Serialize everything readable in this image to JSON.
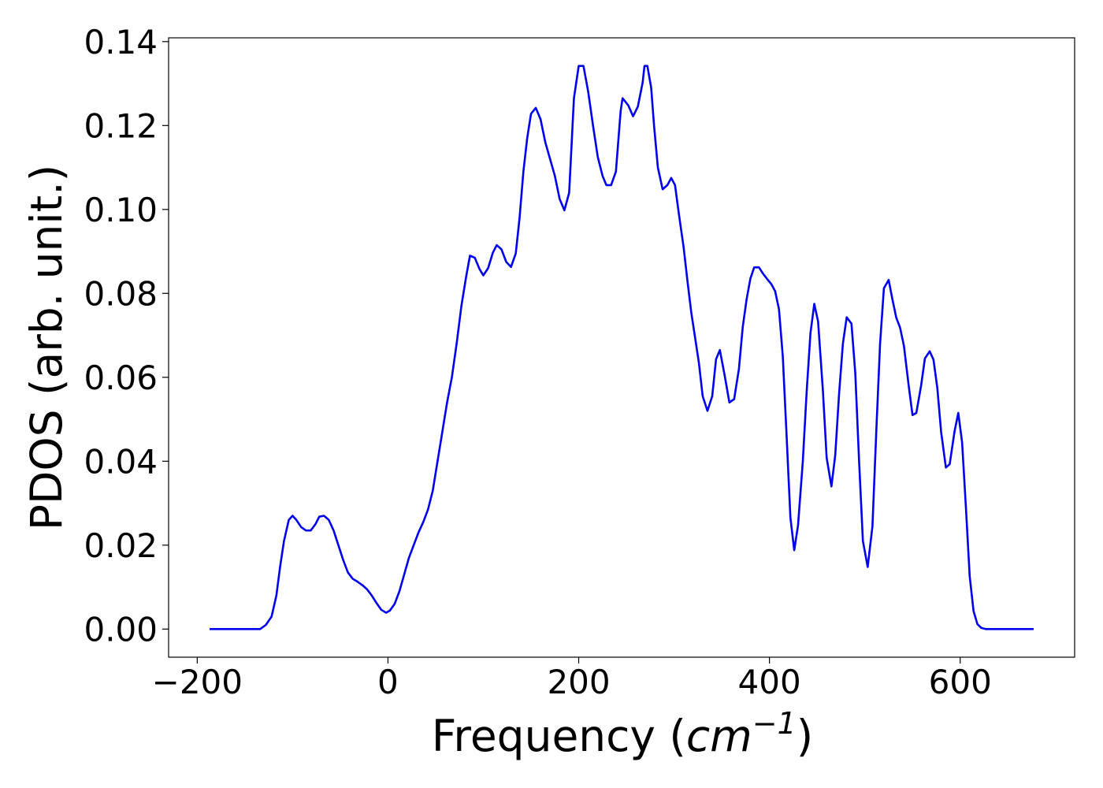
{
  "chart_data": {
    "type": "line",
    "xlabel": [
      "Frequency (",
      "cm",
      "−1",
      ")"
    ],
    "ylabel": "PDOS (arb. unit.)",
    "xlim": [
      -230,
      720
    ],
    "ylim": [
      -0.0067,
      0.1409
    ],
    "xticks": [
      {
        "value": -200,
        "label": "−200"
      },
      0,
      200,
      400,
      600
    ],
    "yticks": [
      {
        "value": 0,
        "label": "0.00"
      },
      {
        "value": 0.02,
        "label": "0.02"
      },
      {
        "value": 0.04,
        "label": "0.04"
      },
      {
        "value": 0.06,
        "label": "0.06"
      },
      {
        "value": 0.08,
        "label": "0.08"
      },
      {
        "value": 0.1,
        "label": "0.10"
      },
      {
        "value": 0.12,
        "label": "0.12"
      },
      {
        "value": 0.14,
        "label": "0.14"
      }
    ],
    "grid": false,
    "series": [
      {
        "color": "#0000ee",
        "x": [
          -187,
          -134,
          -128,
          -122,
          -117,
          -113,
          -109,
          -104,
          -100,
          -96,
          -91,
          -86,
          -81,
          -76,
          -72,
          -67,
          -62,
          -57,
          -52,
          -47,
          -42,
          -37,
          -32,
          -27,
          -22,
          -17,
          -12,
          -7,
          -2,
          2,
          7,
          12,
          17,
          22,
          27,
          32,
          37,
          42,
          47,
          52,
          57,
          62,
          67,
          72,
          77,
          82,
          86,
          91,
          96,
          100,
          105,
          110,
          114,
          119,
          124,
          129,
          134,
          138,
          142,
          146,
          150,
          155,
          160,
          165,
          170,
          175,
          180,
          185,
          190,
          195,
          200,
          205,
          210,
          215,
          220,
          225,
          229,
          234,
          239,
          244,
          246,
          252,
          257,
          262,
          267,
          269,
          272,
          276,
          279,
          283,
          288,
          293,
          297,
          301,
          305,
          310,
          314,
          318,
          322,
          326,
          330,
          335,
          340,
          344,
          348,
          353,
          358,
          363,
          368,
          372,
          376,
          380,
          384,
          389,
          393,
          398,
          402,
          406,
          410,
          414,
          418,
          422,
          426,
          430,
          435,
          439,
          443,
          447,
          451,
          456,
          460,
          465,
          469,
          473,
          477,
          481,
          486,
          490,
          494,
          498,
          503,
          508,
          512,
          516,
          520,
          525,
          529,
          533,
          537,
          541,
          546,
          550,
          554,
          559,
          563,
          568,
          572,
          576,
          580,
          585,
          589,
          594,
          598,
          602,
          606,
          610,
          614,
          618,
          622,
          627,
          677
        ],
        "values": [
          0,
          0,
          0.001,
          0.003,
          0.008,
          0.015,
          0.021,
          0.026,
          0.027,
          0.026,
          0.0243,
          0.0235,
          0.0235,
          0.025,
          0.0268,
          0.027,
          0.026,
          0.0235,
          0.02,
          0.0165,
          0.0135,
          0.012,
          0.0113,
          0.0105,
          0.0095,
          0.008,
          0.0062,
          0.0046,
          0.0039,
          0.0044,
          0.006,
          0.009,
          0.013,
          0.017,
          0.02,
          0.023,
          0.0255,
          0.0285,
          0.033,
          0.04,
          0.047,
          0.054,
          0.06,
          0.068,
          0.077,
          0.084,
          0.089,
          0.0885,
          0.0858,
          0.0843,
          0.086,
          0.0897,
          0.0915,
          0.0905,
          0.0875,
          0.0863,
          0.0895,
          0.098,
          0.109,
          0.117,
          0.1228,
          0.1242,
          0.1215,
          0.116,
          0.112,
          0.108,
          0.1025,
          0.0998,
          0.104,
          0.1265,
          0.1342,
          0.1342,
          0.128,
          0.12,
          0.1125,
          0.108,
          0.1058,
          0.1058,
          0.109,
          0.1235,
          0.1265,
          0.1248,
          0.1222,
          0.1245,
          0.1302,
          0.1342,
          0.1342,
          0.129,
          0.12,
          0.11,
          0.1048,
          0.1058,
          0.1075,
          0.1058,
          0.099,
          0.091,
          0.083,
          0.0755,
          0.0695,
          0.0635,
          0.0555,
          0.052,
          0.0555,
          0.0643,
          0.0665,
          0.0605,
          0.054,
          0.0548,
          0.062,
          0.072,
          0.0785,
          0.0835,
          0.0862,
          0.0862,
          0.0848,
          0.0833,
          0.0822,
          0.0805,
          0.0762,
          0.065,
          0.046,
          0.0265,
          0.0188,
          0.0248,
          0.04,
          0.0565,
          0.0705,
          0.0775,
          0.0733,
          0.057,
          0.0408,
          0.034,
          0.0415,
          0.056,
          0.068,
          0.0743,
          0.0728,
          0.061,
          0.04,
          0.021,
          0.0148,
          0.0245,
          0.047,
          0.068,
          0.0812,
          0.0832,
          0.0785,
          0.0742,
          0.0718,
          0.0675,
          0.058,
          0.051,
          0.0515,
          0.058,
          0.0645,
          0.0662,
          0.0642,
          0.0575,
          0.047,
          0.0385,
          0.0393,
          0.047,
          0.0515,
          0.0445,
          0.029,
          0.0125,
          0.0043,
          0.0012,
          0.0003,
          0,
          0
        ]
      }
    ]
  }
}
